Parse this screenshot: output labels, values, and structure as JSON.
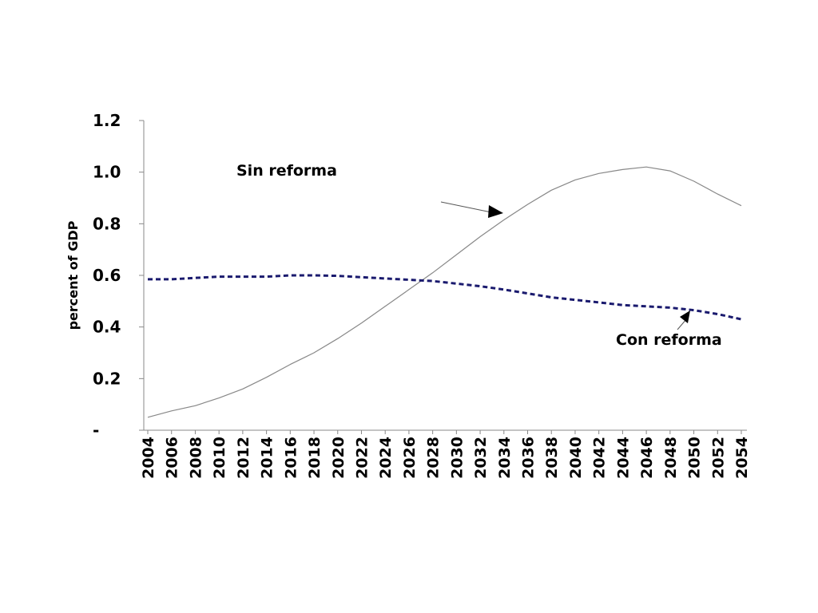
{
  "chart_data": {
    "type": "line",
    "ylabel": "percent of GDP",
    "ylim": [
      0,
      1.2
    ],
    "y_ticks": [
      {
        "value": 1.2,
        "label": "1.2"
      },
      {
        "value": 1.0,
        "label": "1.0"
      },
      {
        "value": 0.8,
        "label": "0.8"
      },
      {
        "value": 0.6,
        "label": "0.6"
      },
      {
        "value": 0.4,
        "label": "0.4"
      },
      {
        "value": 0.2,
        "label": "0.2"
      },
      {
        "value": 0,
        "label": "-"
      }
    ],
    "x_range": [
      2004,
      2054
    ],
    "x_ticks": [
      "2004",
      "2006",
      "2008",
      "2010",
      "2012",
      "2014",
      "2016",
      "2018",
      "2020",
      "2022",
      "2024",
      "2026",
      "2028",
      "2030",
      "2032",
      "2034",
      "2036",
      "2038",
      "2040",
      "2042",
      "2044",
      "2046",
      "2048",
      "2050",
      "2052",
      "2054"
    ],
    "series": [
      {
        "name": "Sin reforma",
        "color": "#888888",
        "style": "solid",
        "points": [
          [
            2004,
            0.05
          ],
          [
            2006,
            0.075
          ],
          [
            2008,
            0.095
          ],
          [
            2010,
            0.125
          ],
          [
            2012,
            0.16
          ],
          [
            2014,
            0.205
          ],
          [
            2016,
            0.255
          ],
          [
            2018,
            0.3
          ],
          [
            2020,
            0.355
          ],
          [
            2022,
            0.415
          ],
          [
            2024,
            0.48
          ],
          [
            2026,
            0.545
          ],
          [
            2028,
            0.61
          ],
          [
            2030,
            0.68
          ],
          [
            2032,
            0.75
          ],
          [
            2034,
            0.815
          ],
          [
            2036,
            0.875
          ],
          [
            2038,
            0.93
          ],
          [
            2040,
            0.97
          ],
          [
            2042,
            0.995
          ],
          [
            2044,
            1.01
          ],
          [
            2046,
            1.02
          ],
          [
            2048,
            1.005
          ],
          [
            2050,
            0.965
          ],
          [
            2052,
            0.915
          ],
          [
            2054,
            0.87
          ]
        ]
      },
      {
        "name": "Con reforma",
        "color": "#1a1a6e",
        "style": "dashed",
        "points": [
          [
            2004,
            0.585
          ],
          [
            2006,
            0.585
          ],
          [
            2008,
            0.59
          ],
          [
            2010,
            0.595
          ],
          [
            2012,
            0.595
          ],
          [
            2014,
            0.595
          ],
          [
            2016,
            0.6
          ],
          [
            2018,
            0.6
          ],
          [
            2020,
            0.598
          ],
          [
            2022,
            0.593
          ],
          [
            2024,
            0.588
          ],
          [
            2026,
            0.583
          ],
          [
            2028,
            0.578
          ],
          [
            2030,
            0.568
          ],
          [
            2032,
            0.558
          ],
          [
            2034,
            0.545
          ],
          [
            2036,
            0.53
          ],
          [
            2038,
            0.515
          ],
          [
            2040,
            0.505
          ],
          [
            2042,
            0.495
          ],
          [
            2044,
            0.485
          ],
          [
            2046,
            0.48
          ],
          [
            2048,
            0.475
          ],
          [
            2050,
            0.465
          ],
          [
            2052,
            0.45
          ],
          [
            2054,
            0.43
          ]
        ]
      }
    ],
    "annotations": [
      {
        "text": "Sin reforma",
        "series": "Sin reforma"
      },
      {
        "text": "Con reforma",
        "series": "Con reforma"
      }
    ],
    "grid": false,
    "legend": "none"
  }
}
